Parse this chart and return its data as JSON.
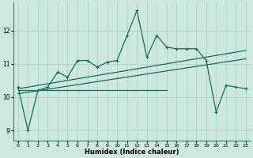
{
  "xlabel": "Humidex (Indice chaleur)",
  "bg_color": "#cce8e0",
  "grid_color": "#aad4cc",
  "line_color": "#1a6b5a",
  "xlim": [
    -0.5,
    23.5
  ],
  "ylim": [
    8.7,
    12.85
  ],
  "yticks": [
    9,
    10,
    11,
    12
  ],
  "xticks": [
    0,
    1,
    2,
    3,
    4,
    5,
    6,
    7,
    8,
    9,
    10,
    11,
    12,
    13,
    14,
    15,
    16,
    17,
    18,
    19,
    20,
    21,
    22,
    23
  ],
  "series1_x": [
    0,
    1,
    2,
    3,
    4,
    5,
    6,
    7,
    8,
    9,
    10,
    11,
    12,
    13,
    14,
    15,
    16,
    17,
    18,
    19,
    20,
    21,
    22,
    23
  ],
  "series1_y": [
    10.3,
    9.0,
    10.2,
    10.3,
    10.75,
    10.6,
    11.1,
    11.1,
    10.9,
    11.05,
    11.1,
    11.85,
    12.6,
    11.2,
    11.85,
    11.5,
    11.45,
    11.45,
    11.45,
    11.1,
    9.55,
    10.35,
    10.3,
    10.25
  ],
  "trend1_x": [
    0,
    23
  ],
  "trend1_y": [
    10.25,
    11.4
  ],
  "trend2_x": [
    0,
    23
  ],
  "trend2_y": [
    10.1,
    11.15
  ],
  "trend3_x": [
    0,
    15
  ],
  "trend3_y": [
    10.2,
    10.2
  ]
}
